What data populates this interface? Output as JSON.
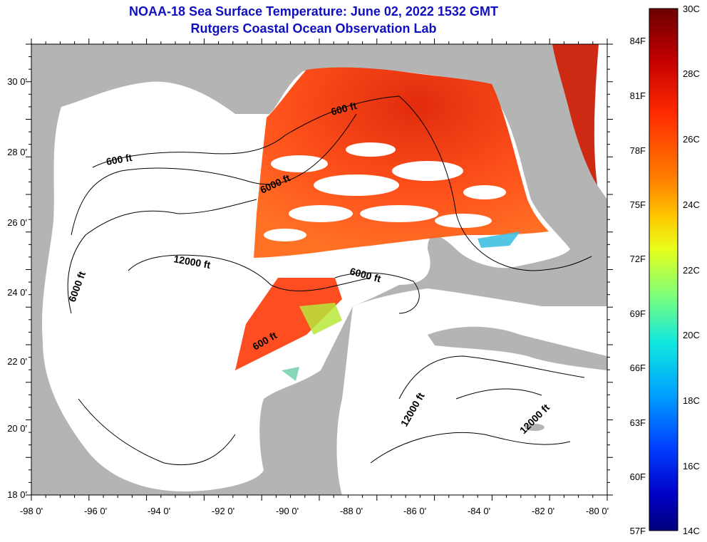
{
  "title_line1": "NOAA-18 Sea Surface Temperature:  June 02, 2022 1532 GMT",
  "title_line2": "Rutgers Coastal Ocean Observation Lab",
  "longitude_labels": [
    "-98 0'",
    "-96 0'",
    "-94 0'",
    "-92 0'",
    "-90 0'",
    "-88 0'",
    "-86 0'",
    "-84 0'",
    "-82 0'",
    "-80 0'"
  ],
  "latitude_labels": [
    "30 0'",
    "28 0'",
    "26 0'",
    "24 0'",
    "22 0'",
    "20 0'",
    "18 0'"
  ],
  "depth_labels": [
    "600 ft",
    "600 ft",
    "600 ft",
    "6000 ft",
    "6000 ft",
    "6000 ft",
    "12000 ft",
    "12000 ft",
    "12000 ft"
  ],
  "colorbar": {
    "celsius_labels": [
      "30C",
      "28C",
      "26C",
      "24C",
      "22C",
      "20C",
      "18C",
      "16C",
      "14C"
    ],
    "fahrenheit_labels": [
      "84F",
      "81F",
      "78F",
      "75F",
      "72F",
      "69F",
      "66F",
      "63F",
      "60F",
      "57F"
    ],
    "colors": [
      "#6b0000",
      "#c40000",
      "#ff2a00",
      "#ff7a00",
      "#ffc800",
      "#e8ff1a",
      "#7dff7a",
      "#10e8e0",
      "#00a0ff",
      "#0040ff",
      "#0000c8",
      "#00007a"
    ]
  },
  "colors": {
    "land": "#b4b4b4",
    "ocean": "#ffffff",
    "title": "#1010c0"
  }
}
